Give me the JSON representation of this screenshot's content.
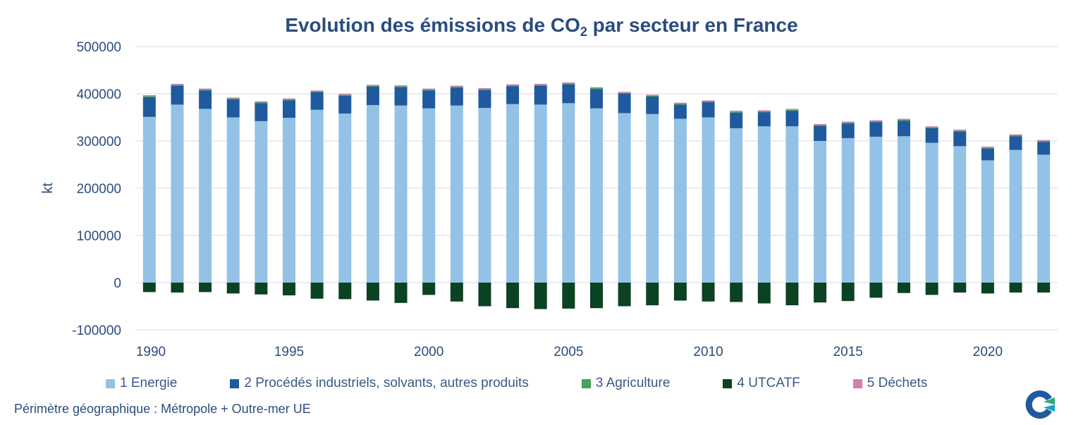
{
  "title": {
    "main": "Evolution des émissions de CO",
    "sub": "2",
    "rest": " par secteur en France"
  },
  "footnote": "Périmètre géographique : Métropole + Outre-mer UE",
  "chart_data": {
    "type": "bar",
    "stacked": true,
    "title": "Evolution des émissions de CO2 par secteur en France",
    "xlabel": "",
    "ylabel": "kt",
    "ylim": [
      -100000,
      500000
    ],
    "yticks": [
      -100000,
      0,
      100000,
      200000,
      300000,
      400000,
      500000
    ],
    "ytick_labels": [
      "-100000",
      "0",
      "100000",
      "200000",
      "300000",
      "400000",
      "500000"
    ],
    "xtick_labels": [
      "1990",
      "1995",
      "2000",
      "2005",
      "2010",
      "2015",
      "2020"
    ],
    "grid": "horizontal",
    "legend_position": "bottom",
    "categories": [
      1990,
      1991,
      1992,
      1993,
      1994,
      1995,
      1996,
      1997,
      1998,
      1999,
      2000,
      2001,
      2002,
      2003,
      2004,
      2005,
      2006,
      2007,
      2008,
      2009,
      2010,
      2011,
      2012,
      2013,
      2014,
      2015,
      2016,
      2017,
      2018,
      2019,
      2020,
      2021,
      2022
    ],
    "series": [
      {
        "name": "1 Energie",
        "color": "#93c2e6",
        "values": [
          351000,
          377000,
          368000,
          350000,
          342000,
          349000,
          366000,
          358000,
          376000,
          375000,
          369000,
          375000,
          370000,
          378000,
          377000,
          380000,
          369000,
          359000,
          357000,
          347000,
          350000,
          327000,
          331000,
          331000,
          300000,
          306000,
          309000,
          310000,
          296000,
          289000,
          259000,
          281000,
          271000
        ]
      },
      {
        "name": "2  Procédés industriels, solvants, autres produits",
        "color": "#1f5a9e",
        "values": [
          42000,
          40000,
          39000,
          38000,
          38000,
          37000,
          37000,
          38000,
          39000,
          39000,
          38000,
          38000,
          38000,
          38000,
          40000,
          40000,
          41000,
          41000,
          37000,
          30000,
          32000,
          33000,
          30000,
          33000,
          32000,
          31000,
          31000,
          33000,
          31000,
          31000,
          25000,
          29000,
          27000
        ]
      },
      {
        "name": "3  Agriculture",
        "color": "#4a9e5e",
        "values": [
          2000,
          2000,
          2000,
          2000,
          2000,
          2000,
          2000,
          2000,
          2000,
          2000,
          2000,
          2000,
          2000,
          2000,
          2000,
          2000,
          2000,
          2000,
          2000,
          2000,
          2000,
          2000,
          2000,
          2000,
          2000,
          2000,
          2000,
          2000,
          2000,
          2000,
          2000,
          2000,
          2000
        ]
      },
      {
        "name": "4  UTCATF",
        "color": "#0b4221",
        "values": [
          -20000,
          -21000,
          -20000,
          -23000,
          -25000,
          -27000,
          -34000,
          -35000,
          -38000,
          -43000,
          -26000,
          -40000,
          -50000,
          -54000,
          -56000,
          -55000,
          -54000,
          -50000,
          -48000,
          -38000,
          -40000,
          -41000,
          -44000,
          -48000,
          -42000,
          -39000,
          -32000,
          -22000,
          -26000,
          -21000,
          -23000,
          -21000,
          -21000
        ]
      },
      {
        "name": "5  Déchets",
        "color": "#d47fb0",
        "values": [
          2000,
          2000,
          2000,
          2000,
          2000,
          2000,
          2000,
          2000,
          2000,
          2000,
          2000,
          2000,
          2000,
          2000,
          2000,
          2000,
          2000,
          2000,
          2000,
          2000,
          2000,
          2000,
          2000,
          2000,
          2000,
          2000,
          2000,
          2000,
          2000,
          2000,
          2000,
          2000,
          2000
        ]
      }
    ]
  }
}
